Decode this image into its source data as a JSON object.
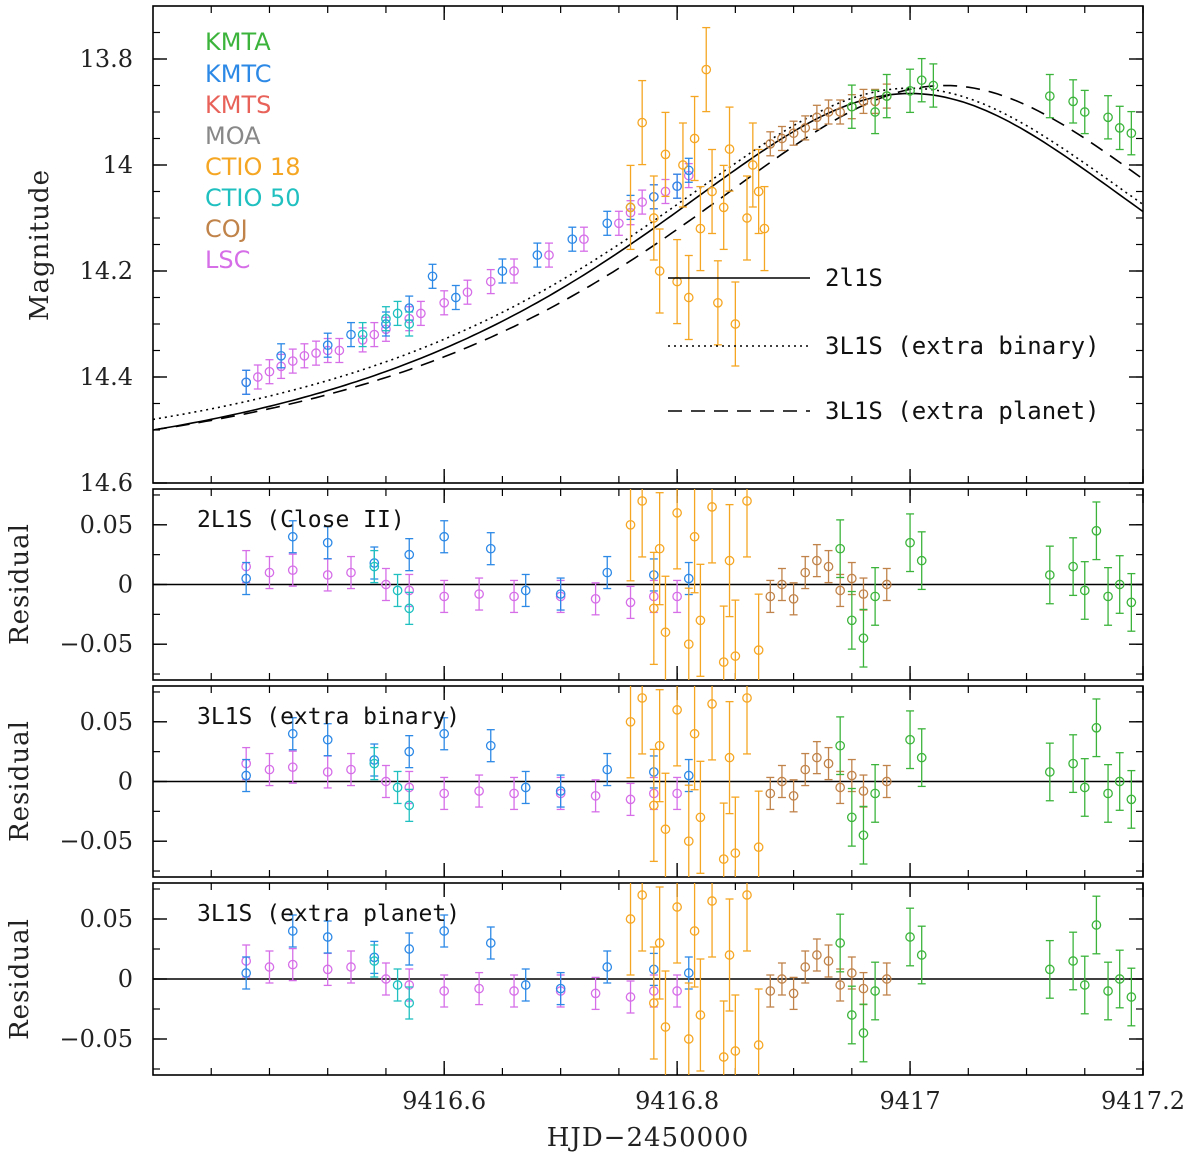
{
  "chart_data": {
    "type": "scatter",
    "xlabel": "HJD−2450000",
    "xlim": [
      9416.35,
      9417.2
    ],
    "x_ticks": [
      9416.6,
      9416.8,
      9417,
      9417.2
    ],
    "x_tick_labels": [
      "9416.6",
      "9416.8",
      "9417",
      "9417.2"
    ],
    "datasets": [
      {
        "name": "KMTA",
        "color": "#3cb43c"
      },
      {
        "name": "KMTC",
        "color": "#2d89e6"
      },
      {
        "name": "KMTS",
        "color": "#e8625a"
      },
      {
        "name": "MOA",
        "color": "#888888"
      },
      {
        "name": "CTIO 18",
        "color": "#f5a623"
      },
      {
        "name": "CTIO 50",
        "color": "#20c0c0"
      },
      {
        "name": "COJ",
        "color": "#c0834a"
      },
      {
        "name": "LSC",
        "color": "#d66ee8"
      }
    ],
    "light_curve": {
      "ylabel": "Magnitude",
      "ylim": [
        14.6,
        13.7
      ],
      "y_ticks": [
        13.8,
        14,
        14.2,
        14.4,
        14.6
      ],
      "y_tick_labels": [
        "13.8",
        "14",
        "14.2",
        "14.4",
        "14.6"
      ],
      "models": [
        {
          "name": "2l1S",
          "style": "solid",
          "peak_t": 9417.0,
          "peak_mag": 13.865,
          "start_mag": 14.5
        },
        {
          "name": "3L1S (extra binary)",
          "style": "dotted",
          "peak_t": 9417.0,
          "peak_mag": 13.855,
          "start_mag": 14.48
        },
        {
          "name": "3L1S (extra planet)",
          "style": "dashed",
          "peak_t": 9417.03,
          "peak_mag": 13.85,
          "start_mag": 14.5
        }
      ],
      "points": {
        "LSC": [
          [
            9416.43,
            14.41
          ],
          [
            9416.44,
            14.4
          ],
          [
            9416.45,
            14.39
          ],
          [
            9416.46,
            14.38
          ],
          [
            9416.47,
            14.37
          ],
          [
            9416.48,
            14.36
          ],
          [
            9416.49,
            14.355
          ],
          [
            9416.5,
            14.35
          ],
          [
            9416.51,
            14.35
          ],
          [
            9416.53,
            14.33
          ],
          [
            9416.54,
            14.32
          ],
          [
            9416.55,
            14.31
          ],
          [
            9416.57,
            14.29
          ],
          [
            9416.58,
            14.28
          ],
          [
            9416.6,
            14.26
          ],
          [
            9416.62,
            14.24
          ],
          [
            9416.64,
            14.22
          ],
          [
            9416.66,
            14.2
          ],
          [
            9416.69,
            14.17
          ],
          [
            9416.72,
            14.14
          ],
          [
            9416.75,
            14.11
          ],
          [
            9416.76,
            14.09
          ],
          [
            9416.77,
            14.07
          ],
          [
            9416.78,
            14.06
          ],
          [
            9416.79,
            14.05
          ],
          [
            9416.8,
            14.04
          ],
          [
            9416.81,
            14.02
          ]
        ],
        "KMTC": [
          [
            9416.43,
            14.41
          ],
          [
            9416.46,
            14.36
          ],
          [
            9416.5,
            14.34
          ],
          [
            9416.52,
            14.32
          ],
          [
            9416.55,
            14.3
          ],
          [
            9416.57,
            14.27
          ],
          [
            9416.59,
            14.21
          ],
          [
            9416.61,
            14.25
          ],
          [
            9416.65,
            14.2
          ],
          [
            9416.68,
            14.17
          ],
          [
            9416.71,
            14.14
          ],
          [
            9416.74,
            14.11
          ],
          [
            9416.76,
            14.08
          ],
          [
            9416.78,
            14.06
          ],
          [
            9416.8,
            14.04
          ],
          [
            9416.81,
            14.01
          ]
        ],
        "CTIO 50": [
          [
            9416.53,
            14.32
          ],
          [
            9416.55,
            14.29
          ],
          [
            9416.56,
            14.28
          ],
          [
            9416.57,
            14.3
          ]
        ],
        "CTIO 18": [
          [
            9416.76,
            14.08
          ],
          [
            9416.77,
            13.92
          ],
          [
            9416.78,
            14.1
          ],
          [
            9416.785,
            14.2
          ],
          [
            9416.79,
            13.98
          ],
          [
            9416.8,
            14.22
          ],
          [
            9416.805,
            14.0
          ],
          [
            9416.81,
            14.25
          ],
          [
            9416.815,
            13.95
          ],
          [
            9416.82,
            14.12
          ],
          [
            9416.825,
            13.82
          ],
          [
            9416.83,
            14.05
          ],
          [
            9416.835,
            14.26
          ],
          [
            9416.84,
            14.08
          ],
          [
            9416.845,
            13.97
          ],
          [
            9416.85,
            14.3
          ],
          [
            9416.86,
            14.1
          ],
          [
            9416.865,
            14.0
          ],
          [
            9416.87,
            14.05
          ],
          [
            9416.875,
            14.12
          ]
        ],
        "COJ": [
          [
            9416.88,
            13.96
          ],
          [
            9416.89,
            13.95
          ],
          [
            9416.9,
            13.94
          ],
          [
            9416.91,
            13.93
          ],
          [
            9416.92,
            13.91
          ],
          [
            9416.93,
            13.9
          ],
          [
            9416.94,
            13.9
          ],
          [
            9416.95,
            13.89
          ],
          [
            9416.96,
            13.88
          ],
          [
            9416.97,
            13.88
          ],
          [
            9416.98,
            13.87
          ]
        ],
        "KMTA": [
          [
            9416.95,
            13.89
          ],
          [
            9416.97,
            13.9
          ],
          [
            9416.98,
            13.87
          ],
          [
            9417.0,
            13.86
          ],
          [
            9417.01,
            13.84
          ],
          [
            9417.02,
            13.85
          ],
          [
            9417.12,
            13.87
          ],
          [
            9417.14,
            13.88
          ],
          [
            9417.15,
            13.9
          ],
          [
            9417.17,
            13.91
          ],
          [
            9417.18,
            13.93
          ],
          [
            9417.19,
            13.94
          ]
        ]
      }
    },
    "residual_panels": [
      {
        "label": "2L1S (Close II)",
        "ylabel": "Residual",
        "ylim": [
          -0.08,
          0.08
        ],
        "y_ticks": [
          0.05,
          0,
          -0.05
        ],
        "y_tick_labels": [
          "0.05",
          "0",
          "−0.05"
        ]
      },
      {
        "label": "3L1S (extra binary)",
        "ylabel": "Residual",
        "ylim": [
          -0.08,
          0.08
        ],
        "y_ticks": [
          0.05,
          0,
          -0.05
        ],
        "y_tick_labels": [
          "0.05",
          "0",
          "−0.05"
        ]
      },
      {
        "label": "3L1S (extra planet)",
        "ylabel": "Residual",
        "ylim": [
          -0.08,
          0.08
        ],
        "y_ticks": [
          0.05,
          0,
          -0.05
        ],
        "y_tick_labels": [
          "0.05",
          "0",
          "−0.05"
        ]
      }
    ],
    "residual_points": {
      "LSC": [
        [
          9416.43,
          0.015
        ],
        [
          9416.45,
          0.01
        ],
        [
          9416.47,
          0.012
        ],
        [
          9416.5,
          0.008
        ],
        [
          9416.52,
          0.01
        ],
        [
          9416.55,
          0.0
        ],
        [
          9416.57,
          -0.005
        ],
        [
          9416.6,
          -0.01
        ],
        [
          9416.63,
          -0.008
        ],
        [
          9416.66,
          -0.01
        ],
        [
          9416.7,
          -0.01
        ],
        [
          9416.73,
          -0.012
        ],
        [
          9416.76,
          -0.015
        ],
        [
          9416.78,
          -0.01
        ],
        [
          9416.8,
          -0.01
        ]
      ],
      "KMTC": [
        [
          9416.43,
          0.005
        ],
        [
          9416.47,
          0.04
        ],
        [
          9416.5,
          0.035
        ],
        [
          9416.54,
          0.018
        ],
        [
          9416.57,
          0.025
        ],
        [
          9416.6,
          0.04
        ],
        [
          9416.64,
          0.03
        ],
        [
          9416.67,
          -0.005
        ],
        [
          9416.7,
          -0.008
        ],
        [
          9416.74,
          0.01
        ],
        [
          9416.78,
          0.008
        ],
        [
          9416.81,
          0.005
        ]
      ],
      "CTIO 50": [
        [
          9416.54,
          0.015
        ],
        [
          9416.56,
          -0.005
        ],
        [
          9416.57,
          -0.02
        ]
      ],
      "CTIO 18": [
        [
          9416.76,
          0.05
        ],
        [
          9416.77,
          0.07
        ],
        [
          9416.78,
          -0.02
        ],
        [
          9416.785,
          0.03
        ],
        [
          9416.79,
          -0.04
        ],
        [
          9416.8,
          0.06
        ],
        [
          9416.81,
          -0.05
        ],
        [
          9416.815,
          0.04
        ],
        [
          9416.82,
          -0.03
        ],
        [
          9416.83,
          0.065
        ],
        [
          9416.84,
          -0.065
        ],
        [
          9416.845,
          0.02
        ],
        [
          9416.85,
          -0.06
        ],
        [
          9416.86,
          0.07
        ],
        [
          9416.87,
          -0.055
        ]
      ],
      "COJ": [
        [
          9416.88,
          -0.01
        ],
        [
          9416.89,
          0.0
        ],
        [
          9416.9,
          -0.012
        ],
        [
          9416.91,
          0.01
        ],
        [
          9416.92,
          0.02
        ],
        [
          9416.93,
          0.015
        ],
        [
          9416.94,
          -0.005
        ],
        [
          9416.95,
          0.005
        ],
        [
          9416.96,
          -0.008
        ],
        [
          9416.98,
          0.0
        ]
      ],
      "KMTA": [
        [
          9416.94,
          0.03
        ],
        [
          9416.95,
          -0.03
        ],
        [
          9416.96,
          -0.045
        ],
        [
          9416.97,
          -0.01
        ],
        [
          9417.0,
          0.035
        ],
        [
          9417.01,
          0.02
        ],
        [
          9417.12,
          0.008
        ],
        [
          9417.14,
          0.015
        ],
        [
          9417.15,
          -0.005
        ],
        [
          9417.16,
          0.045
        ],
        [
          9417.17,
          -0.01
        ],
        [
          9417.18,
          0.0
        ],
        [
          9417.19,
          -0.015
        ]
      ]
    }
  }
}
